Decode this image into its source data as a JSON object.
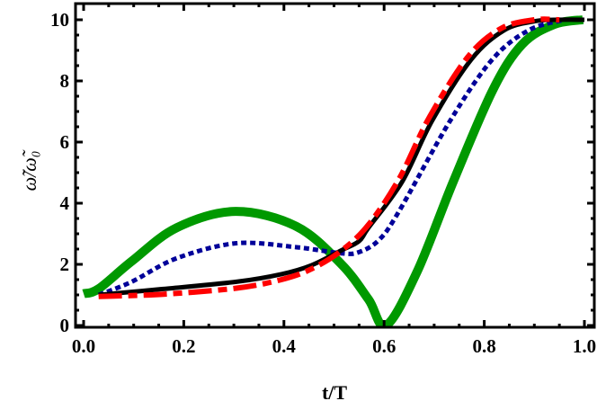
{
  "chart_data": {
    "type": "line",
    "title": "",
    "xlabel": "t/T",
    "ylabel": "ω̃/ω̃₀",
    "xlim": [
      0,
      1
    ],
    "ylim": [
      0,
      10
    ],
    "xticks": [
      "0.0",
      "0.2",
      "0.4",
      "0.6",
      "0.8",
      "1.0"
    ],
    "yticks": [
      "0",
      "2",
      "4",
      "6",
      "8",
      "10"
    ],
    "grid": false,
    "legend": "none",
    "series": [
      {
        "color": "#000000",
        "style": "solid",
        "x": [
          0.03,
          0.156,
          0.305,
          0.395,
          0.455,
          0.515,
          0.55,
          0.569,
          0.636,
          0.696,
          0.774,
          0.84,
          0.9,
          0.94,
          1.0
        ],
        "y": [
          1.0,
          1.19,
          1.43,
          1.68,
          1.97,
          2.46,
          2.76,
          3.2,
          4.7,
          6.7,
          8.7,
          9.66,
          9.95,
          10.0,
          10.0
        ]
      },
      {
        "color": "#ff0000",
        "style": "dash-dot",
        "x": [
          0.03,
          0.156,
          0.305,
          0.395,
          0.455,
          0.515,
          0.569,
          0.63,
          0.69,
          0.768,
          0.834,
          0.9,
          0.95
        ],
        "y": [
          0.95,
          1.02,
          1.22,
          1.5,
          1.85,
          2.45,
          3.3,
          4.8,
          6.8,
          8.8,
          9.72,
          10.0,
          10.0
        ]
      },
      {
        "color": "#000099",
        "style": "dotted",
        "x": [
          0.03,
          0.096,
          0.186,
          0.305,
          0.425,
          0.515,
          0.55,
          0.59,
          0.63,
          0.732,
          0.816,
          0.889,
          0.96
        ],
        "y": [
          1.0,
          1.43,
          2.2,
          2.69,
          2.56,
          2.36,
          2.4,
          2.8,
          3.74,
          6.7,
          8.7,
          9.66,
          10.0
        ]
      },
      {
        "color": "#009900",
        "style": "thick-solid",
        "x": [
          0.0,
          0.03,
          0.096,
          0.186,
          0.303,
          0.425,
          0.515,
          0.569,
          0.604,
          0.666,
          0.738,
          0.817,
          0.876,
          0.94,
          0.997
        ],
        "y": [
          1.04,
          1.2,
          2.1,
          3.2,
          3.73,
          3.24,
          2.0,
          0.85,
          0.0,
          1.76,
          4.7,
          7.7,
          9.2,
          9.85,
          10.0
        ]
      }
    ]
  }
}
